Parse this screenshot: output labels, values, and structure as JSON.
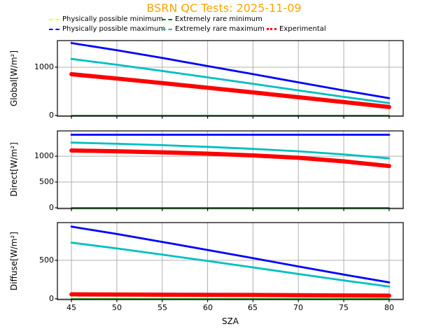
{
  "title": {
    "text": "BSRN QC Tests: 2025-11-09",
    "color": "#ffa500"
  },
  "legend": {
    "items": [
      {
        "label": "Physically possible minimum",
        "color": "#ffff00",
        "linestyle": "dashed"
      },
      {
        "label": "Extremely rare minimum",
        "color": "#008000",
        "linestyle": "dashed"
      },
      {
        "label": "Physically possible maximum",
        "color": "#0000ff",
        "linestyle": "dashed"
      },
      {
        "label": "Extremely rare maximum",
        "color": "#00bfbf",
        "linestyle": "dashed"
      },
      {
        "label": "Experimental",
        "color": "#ff0000",
        "linestyle": "dotted"
      }
    ]
  },
  "xaxis": {
    "label": "SZA",
    "ticks": [
      45,
      50,
      55,
      60,
      65,
      70,
      75,
      80
    ],
    "xlim": [
      43.45,
      81.55
    ]
  },
  "colors": {
    "grid": "#b0b0b0",
    "spine": "#000000",
    "background": "#ffffff"
  },
  "chart_data": [
    {
      "id": "global",
      "type": "line",
      "ylabel": "Global[W/m²]",
      "ylim": [
        -15,
        1550
      ],
      "yticks": [
        0,
        1000
      ],
      "grid": true,
      "x": [
        45,
        50,
        55,
        60,
        65,
        70,
        75,
        80
      ],
      "series": [
        {
          "key": "pp_min",
          "name": "Physically possible minimum",
          "color": "#ffff00",
          "values": [
            -4,
            -4,
            -4,
            -4,
            -4,
            -4,
            -4,
            -4
          ]
        },
        {
          "key": "er_min",
          "name": "Extremely rare minimum",
          "color": "#008000",
          "values": [
            -2,
            -2,
            -2,
            -2,
            -2,
            -2,
            -2,
            -2
          ]
        },
        {
          "key": "pp_max",
          "name": "Physically possible maximum",
          "color": "#0000ff",
          "values": [
            1500,
            1350,
            1190,
            1023,
            856,
            686,
            518,
            359
          ]
        },
        {
          "key": "er_max",
          "name": "Extremely rare maximum",
          "color": "#00bfbf",
          "values": [
            1170,
            1050,
            921,
            789,
            654,
            519,
            385,
            257
          ]
        },
        {
          "key": "experimental",
          "name": "Experimental",
          "color": "#ff0000",
          "values": [
            855,
            765,
            670,
            575,
            478,
            378,
            277,
            175
          ]
        }
      ]
    },
    {
      "id": "direct",
      "type": "line",
      "ylabel": "Direct[W/m²]",
      "ylim": [
        -15,
        1490
      ],
      "yticks": [
        0,
        500,
        1000
      ],
      "grid": true,
      "x": [
        45,
        50,
        55,
        60,
        65,
        70,
        75,
        80
      ],
      "series": [
        {
          "key": "pp_min",
          "name": "Physically possible minimum",
          "color": "#ffff00",
          "values": [
            -4,
            -4,
            -4,
            -4,
            -4,
            -4,
            -4,
            -4
          ]
        },
        {
          "key": "er_min",
          "name": "Extremely rare minimum",
          "color": "#008000",
          "values": [
            -2,
            -2,
            -2,
            -2,
            -2,
            -2,
            -2,
            -2
          ]
        },
        {
          "key": "pp_max",
          "name": "Physically possible maximum",
          "color": "#0000ff",
          "values": [
            1415,
            1415,
            1415,
            1415,
            1415,
            1415,
            1415,
            1415
          ]
        },
        {
          "key": "er_max",
          "name": "Extremely rare maximum",
          "color": "#00bfbf",
          "values": [
            1264,
            1240,
            1213,
            1181,
            1142,
            1095,
            1035,
            958
          ]
        },
        {
          "key": "experimental",
          "name": "Experimental",
          "color": "#ff0000",
          "values": [
            1110,
            1095,
            1075,
            1050,
            1015,
            970,
            900,
            810
          ]
        }
      ]
    },
    {
      "id": "diffuse",
      "type": "line",
      "ylabel": "Diffuse[W/m²]",
      "ylim": [
        -10,
        990
      ],
      "yticks": [
        0,
        500
      ],
      "grid": true,
      "x": [
        45,
        50,
        55,
        60,
        65,
        70,
        75,
        80
      ],
      "series": [
        {
          "key": "pp_min",
          "name": "Physically possible minimum",
          "color": "#ffff00",
          "values": [
            -4,
            -4,
            -4,
            -4,
            -4,
            -4,
            -4,
            -4
          ]
        },
        {
          "key": "er_min",
          "name": "Extremely rare minimum",
          "color": "#008000",
          "values": [
            -2,
            -2,
            -2,
            -2,
            -2,
            -2,
            -2,
            -2
          ]
        },
        {
          "key": "pp_max",
          "name": "Physically possible maximum",
          "color": "#0000ff",
          "values": [
            937,
            842,
            739,
            635,
            528,
            421,
            315,
            214
          ]
        },
        {
          "key": "er_max",
          "name": "Extremely rare maximum",
          "color": "#00bfbf",
          "values": [
            730,
            655,
            574,
            492,
            408,
            323,
            239,
            159
          ]
        },
        {
          "key": "experimental",
          "name": "Experimental",
          "color": "#ff0000",
          "values": [
            58,
            56,
            54,
            52,
            50,
            47,
            44,
            41
          ]
        }
      ]
    }
  ]
}
